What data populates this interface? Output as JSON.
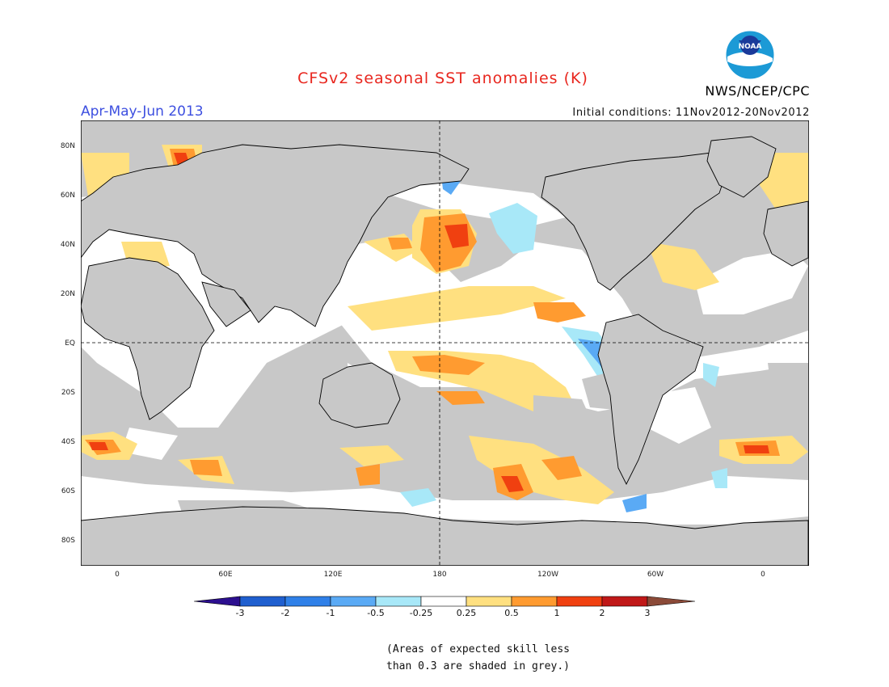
{
  "title": "CFSv2 seasonal SST anomalies (K)",
  "season": "Apr-May-Jun 2013",
  "agency": "NWS/NCEP/CPC",
  "logo_text": "NOAA",
  "initial_conditions": "Initial conditions: 11Nov2012-20Nov2012",
  "note_line1": "(Areas of expected skill less",
  "note_line2": "than 0.3 are shaded in grey.)",
  "map": {
    "lat_labels": [
      "80N",
      "60N",
      "40N",
      "20N",
      "EQ",
      "20S",
      "40S",
      "60S",
      "80S"
    ],
    "lon_labels": [
      "0",
      "60E",
      "120E",
      "180",
      "120W",
      "60W",
      "0"
    ],
    "colors": {
      "land": "#c8c8c8",
      "grey_noskill": "#c8c8c8",
      "neutral": "#ffffff"
    }
  },
  "colorbar": {
    "labels": [
      "-3",
      "-2",
      "-1",
      "-0.5",
      "-0.25",
      "0.25",
      "0.5",
      "1",
      "2",
      "3"
    ],
    "colors": [
      "#2c0f8f",
      "#1f5fcf",
      "#2f80e8",
      "#5aaaf5",
      "#a8e8f8",
      "#ffffff",
      "#ffe080",
      "#ff9b30",
      "#f04010",
      "#c01818",
      "#8b4a38"
    ]
  },
  "chart_data": {
    "type": "heatmap",
    "title": "CFSv2 seasonal SST anomalies (K)",
    "subtitle": "Apr-May-Jun 2013",
    "units": "K",
    "levels": [
      -3,
      -2,
      -1,
      -0.5,
      -0.25,
      0.25,
      0.5,
      1,
      2,
      3
    ]
  }
}
